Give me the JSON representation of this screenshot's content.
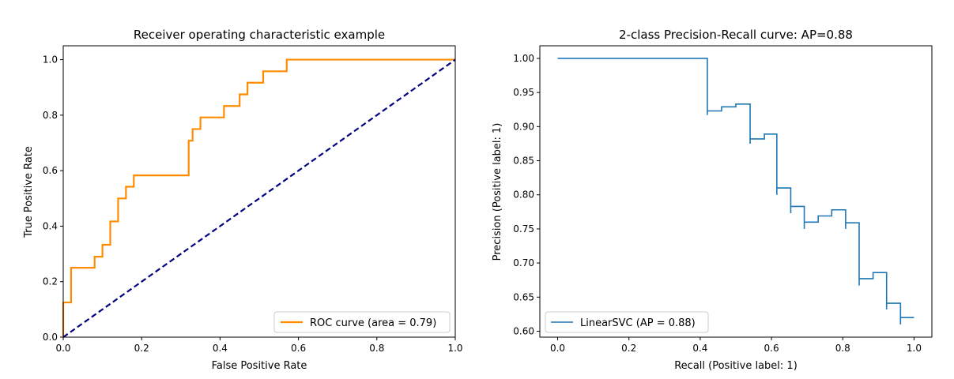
{
  "chart_data": [
    {
      "type": "line",
      "title": "Receiver operating characteristic example",
      "xlabel": "False Positive Rate",
      "ylabel": "True Positive Rate",
      "xlim": [
        0.0,
        1.0
      ],
      "ylim": [
        0.0,
        1.05
      ],
      "xticks": [
        "0.0",
        "0.2",
        "0.4",
        "0.6",
        "0.8",
        "1.0"
      ],
      "yticks": [
        "0.0",
        "0.2",
        "0.4",
        "0.6",
        "0.8",
        "1.0"
      ],
      "grid": false,
      "legend_loc": "lower right",
      "series": [
        {
          "name": "ROC curve (area = 0.79)",
          "color": "#ff8c00",
          "style": "solid",
          "x": [
            0.0,
            0.0,
            0.02,
            0.02,
            0.08,
            0.08,
            0.1,
            0.1,
            0.12,
            0.12,
            0.14,
            0.14,
            0.16,
            0.16,
            0.18,
            0.18,
            0.32,
            0.32,
            0.33,
            0.33,
            0.35,
            0.35,
            0.41,
            0.41,
            0.45,
            0.45,
            0.47,
            0.47,
            0.51,
            0.51,
            0.57,
            0.57,
            1.0
          ],
          "y": [
            0.0,
            0.125,
            0.125,
            0.25,
            0.25,
            0.29,
            0.29,
            0.333,
            0.333,
            0.417,
            0.417,
            0.5,
            0.5,
            0.542,
            0.542,
            0.583,
            0.583,
            0.708,
            0.708,
            0.75,
            0.75,
            0.792,
            0.792,
            0.833,
            0.833,
            0.875,
            0.875,
            0.917,
            0.917,
            0.958,
            0.958,
            1.0,
            1.0
          ]
        },
        {
          "name": "",
          "color": "#000080",
          "style": "dashed",
          "x": [
            0.0,
            1.0
          ],
          "y": [
            0.0,
            1.0
          ]
        }
      ]
    },
    {
      "type": "line",
      "title": "2-class Precision-Recall curve: AP=0.88",
      "xlabel": "Recall (Positive label: 1)",
      "ylabel": "Precision (Positive label: 1)",
      "xlim": [
        -0.05,
        1.05
      ],
      "ylim": [
        0.5913,
        1.0185
      ],
      "xticks": [
        "0.0",
        "0.2",
        "0.4",
        "0.6",
        "0.8",
        "1.0"
      ],
      "yticks": [
        "0.60",
        "0.65",
        "0.70",
        "0.75",
        "0.80",
        "0.85",
        "0.90",
        "0.95",
        "1.00"
      ],
      "grid": false,
      "legend_loc": "lower left",
      "series": [
        {
          "name": "LinearSVC (AP = 0.88)",
          "color": "#1f77b4",
          "style": "steps",
          "x": [
            0.0,
            0.42,
            0.42,
            0.42,
            0.42,
            0.46,
            0.46,
            0.5,
            0.5,
            0.54,
            0.54,
            0.54,
            0.54,
            0.58,
            0.58,
            0.615,
            0.615,
            0.615,
            0.615,
            0.654,
            0.654,
            0.654,
            0.654,
            0.692,
            0.692,
            0.692,
            0.692,
            0.731,
            0.731,
            0.769,
            0.769,
            0.808,
            0.808,
            0.808,
            0.808,
            0.846,
            0.846,
            0.846,
            0.846,
            0.885,
            0.885,
            0.923,
            0.923,
            0.923,
            0.923,
            0.962,
            0.962,
            0.962,
            0.962,
            1.0
          ],
          "y": [
            1.0,
            1.0,
            0.917,
            0.917,
            0.923,
            0.923,
            0.929,
            0.929,
            0.933,
            0.933,
            0.875,
            0.875,
            0.882,
            0.882,
            0.889,
            0.889,
            0.8,
            0.8,
            0.81,
            0.81,
            0.773,
            0.773,
            0.783,
            0.783,
            0.75,
            0.75,
            0.76,
            0.76,
            0.769,
            0.769,
            0.778,
            0.778,
            0.75,
            0.75,
            0.759,
            0.759,
            0.667,
            0.667,
            0.677,
            0.677,
            0.686,
            0.686,
            0.632,
            0.632,
            0.641,
            0.641,
            0.61,
            0.61,
            0.62,
            0.62
          ]
        }
      ]
    }
  ]
}
